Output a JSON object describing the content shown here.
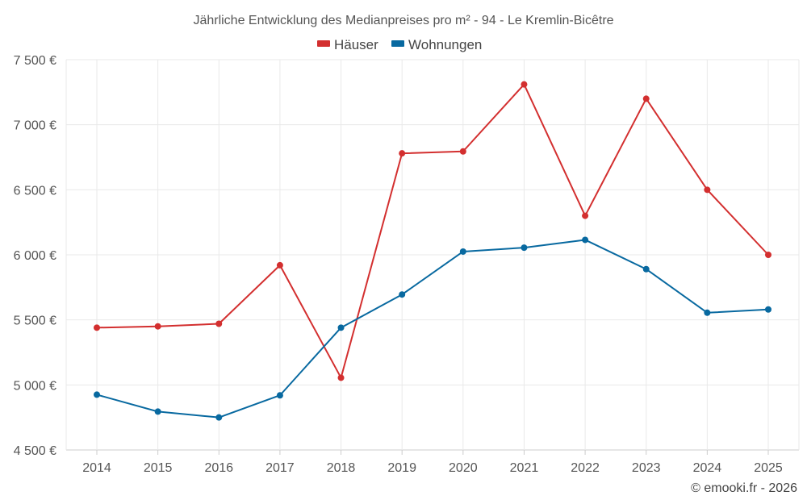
{
  "chart_data": {
    "type": "line",
    "title": "Jährliche Entwicklung des Medianpreises pro m² - 94 - Le Kremlin-Bicêtre",
    "categories": [
      "2014",
      "2015",
      "2016",
      "2017",
      "2018",
      "2019",
      "2020",
      "2021",
      "2022",
      "2023",
      "2024",
      "2025"
    ],
    "series": [
      {
        "name": "Häuser",
        "color": "#d32f2f",
        "values": [
          5440,
          5450,
          5470,
          5920,
          5055,
          6780,
          6795,
          7310,
          6300,
          7200,
          6500,
          6000
        ]
      },
      {
        "name": "Wohnungen",
        "color": "#0869a0",
        "values": [
          4925,
          4795,
          4750,
          4920,
          5440,
          5695,
          6025,
          6055,
          6115,
          5890,
          5555,
          5580
        ]
      }
    ],
    "ylim": [
      4500,
      7500
    ],
    "yticks": [
      4500,
      5000,
      5500,
      6000,
      6500,
      7000,
      7500
    ],
    "ytick_labels": [
      "4 500 €",
      "5 000 €",
      "5 500 €",
      "6 000 €",
      "6 500 €",
      "7 000 €",
      "7 500 €"
    ],
    "legend_position": "top-center",
    "grid": true
  },
  "credit": "© emooki.fr - 2026"
}
